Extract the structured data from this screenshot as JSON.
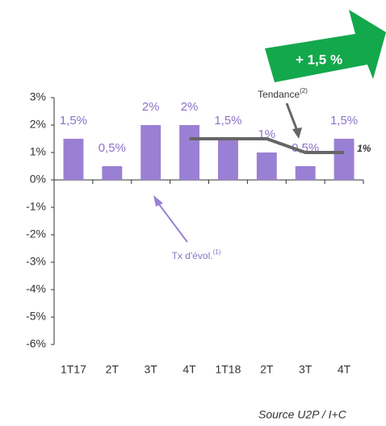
{
  "chart_data": {
    "type": "bar",
    "categories": [
      "1T17",
      "2T",
      "3T",
      "4T",
      "1T18",
      "2T",
      "3T",
      "4T"
    ],
    "series": [
      {
        "name": "Tx d'évol.",
        "type": "bar",
        "color": "#9a80d4",
        "values": [
          1.5,
          0.5,
          2,
          2,
          1.5,
          1,
          0.5,
          1.5
        ],
        "value_labels": [
          "1,5%",
          "0,5%",
          "2%",
          "2%",
          "1,5%",
          "1%",
          "0,5%",
          "1,5%"
        ]
      },
      {
        "name": "Tendance",
        "type": "line",
        "color": "#666666",
        "values": [
          null,
          null,
          null,
          1.5,
          1.5,
          1.5,
          1,
          1
        ],
        "value_labels": [
          null,
          null,
          null,
          null,
          null,
          null,
          null,
          "1%"
        ]
      }
    ],
    "ylim": [
      -6,
      3
    ],
    "yticks": [
      {
        "value": 3,
        "label": "3%"
      },
      {
        "value": 2,
        "label": "2%"
      },
      {
        "value": 1,
        "label": "1%"
      },
      {
        "value": 0,
        "label": "0%"
      },
      {
        "value": -1,
        "label": "-1%"
      },
      {
        "value": -2,
        "label": "-2%"
      },
      {
        "value": -3,
        "label": "-3%"
      },
      {
        "value": -4,
        "label": "-4%"
      },
      {
        "value": -5,
        "label": "-5%"
      },
      {
        "value": -6,
        "label": "-6%"
      }
    ],
    "annotations": {
      "trend": {
        "text": "Tendance",
        "sup": "(2)"
      },
      "rate": {
        "text": "Tx d'évol.",
        "sup": "(1)"
      },
      "growth": "+ 1,5 %"
    },
    "source": "Source U2P / I+C"
  }
}
